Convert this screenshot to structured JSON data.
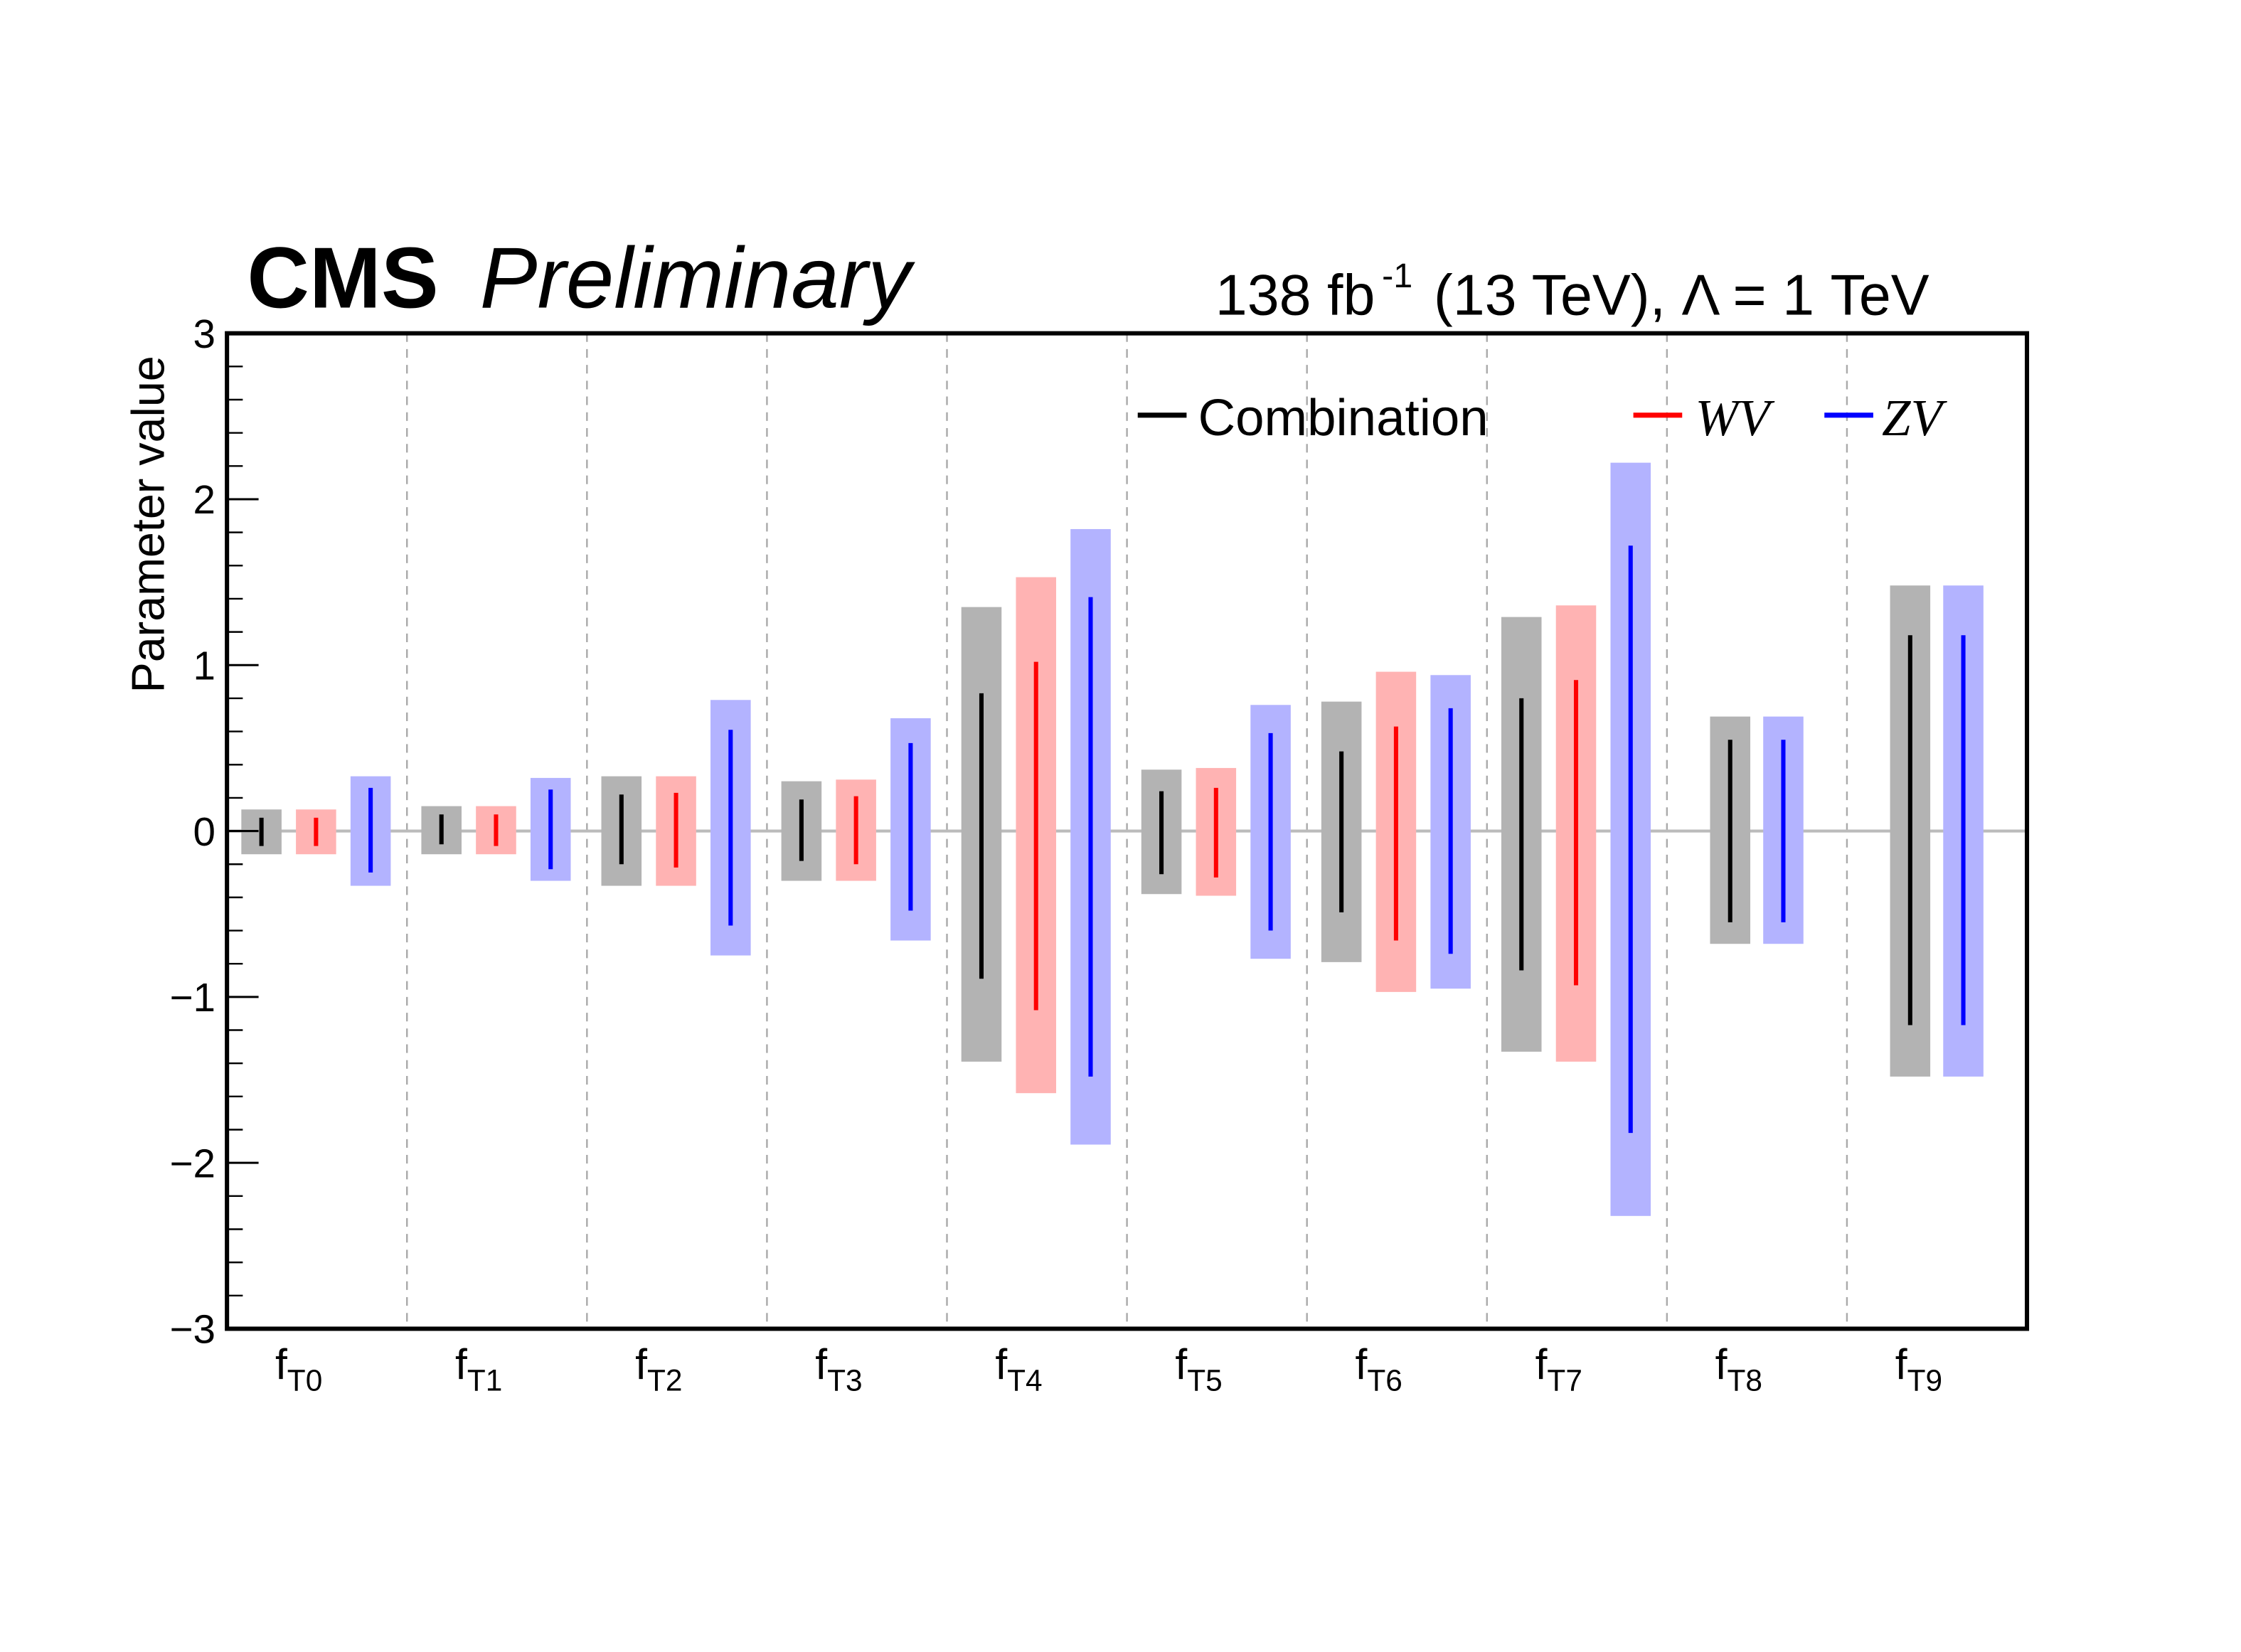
{
  "chart_data": {
    "type": "bar",
    "subtype": "interval",
    "header": {
      "experiment": "CMS",
      "status": "Preliminary",
      "lumi": "138 fb",
      "lumi_exp": "-1",
      "energy": "(13 TeV), Λ = 1 TeV"
    },
    "ylabel": "Parameter value",
    "xlabel": "",
    "ylim": [
      -3,
      3
    ],
    "yticks": [
      -3,
      -2,
      -1,
      0,
      1,
      2,
      3
    ],
    "ytick_labels": [
      "−3",
      "−2",
      "−1",
      "0",
      "1",
      "2",
      "3"
    ],
    "grid": "vertical dashed separators between categories",
    "legend_placement": "top-right",
    "categories": [
      {
        "base": "f",
        "sub": "T0"
      },
      {
        "base": "f",
        "sub": "T1"
      },
      {
        "base": "f",
        "sub": "T2"
      },
      {
        "base": "f",
        "sub": "T3"
      },
      {
        "base": "f",
        "sub": "T4"
      },
      {
        "base": "f",
        "sub": "T5"
      },
      {
        "base": "f",
        "sub": "T6"
      },
      {
        "base": "f",
        "sub": "T7"
      },
      {
        "base": "f",
        "sub": "T8"
      },
      {
        "base": "f",
        "sub": "T9"
      }
    ],
    "series": [
      {
        "name": "Combination",
        "italic": false,
        "line_color": "#000000",
        "band_color": "#b3b3b3",
        "inner_68": [
          [
            -0.09,
            0.08
          ],
          [
            -0.08,
            0.1
          ],
          [
            -0.2,
            0.22
          ],
          [
            -0.18,
            0.19
          ],
          [
            -0.89,
            0.83
          ],
          [
            -0.26,
            0.24
          ],
          [
            -0.49,
            0.48
          ],
          [
            -0.84,
            0.8
          ],
          [
            -0.55,
            0.55
          ],
          [
            -1.17,
            1.18
          ]
        ],
        "outer_95": [
          [
            -0.14,
            0.13
          ],
          [
            -0.14,
            0.15
          ],
          [
            -0.33,
            0.33
          ],
          [
            -0.3,
            0.3
          ],
          [
            -1.39,
            1.35
          ],
          [
            -0.38,
            0.37
          ],
          [
            -0.79,
            0.78
          ],
          [
            -1.33,
            1.29
          ],
          [
            -0.68,
            0.69
          ],
          [
            -1.48,
            1.48
          ]
        ]
      },
      {
        "name": "WV",
        "italic": true,
        "line_color": "#ff0000",
        "band_color": "#ffb3b3",
        "inner_68": [
          [
            -0.09,
            0.08
          ],
          [
            -0.09,
            0.1
          ],
          [
            -0.22,
            0.23
          ],
          [
            -0.2,
            0.21
          ],
          [
            -1.08,
            1.02
          ],
          [
            -0.28,
            0.26
          ],
          [
            -0.66,
            0.63
          ],
          [
            -0.93,
            0.91
          ],
          null,
          null
        ],
        "outer_95": [
          [
            -0.14,
            0.13
          ],
          [
            -0.14,
            0.15
          ],
          [
            -0.33,
            0.33
          ],
          [
            -0.3,
            0.31
          ],
          [
            -1.58,
            1.53
          ],
          [
            -0.39,
            0.38
          ],
          [
            -0.97,
            0.96
          ],
          [
            -1.39,
            1.36
          ],
          null,
          null
        ]
      },
      {
        "name": "ZV",
        "italic": true,
        "line_color": "#0000ff",
        "band_color": "#b3b3ff",
        "inner_68": [
          [
            -0.25,
            0.26
          ],
          [
            -0.23,
            0.25
          ],
          [
            -0.57,
            0.61
          ],
          [
            -0.48,
            0.53
          ],
          [
            -1.48,
            1.41
          ],
          [
            -0.6,
            0.59
          ],
          [
            -0.74,
            0.74
          ],
          [
            -1.82,
            1.72
          ],
          [
            -0.55,
            0.55
          ],
          [
            -1.17,
            1.18
          ]
        ],
        "outer_95": [
          [
            -0.33,
            0.33
          ],
          [
            -0.3,
            0.32
          ],
          [
            -0.75,
            0.79
          ],
          [
            -0.66,
            0.68
          ],
          [
            -1.89,
            1.82
          ],
          [
            -0.77,
            0.76
          ],
          [
            -0.95,
            0.94
          ],
          [
            -2.32,
            2.22
          ],
          [
            -0.68,
            0.69
          ],
          [
            -1.48,
            1.48
          ]
        ]
      }
    ]
  }
}
